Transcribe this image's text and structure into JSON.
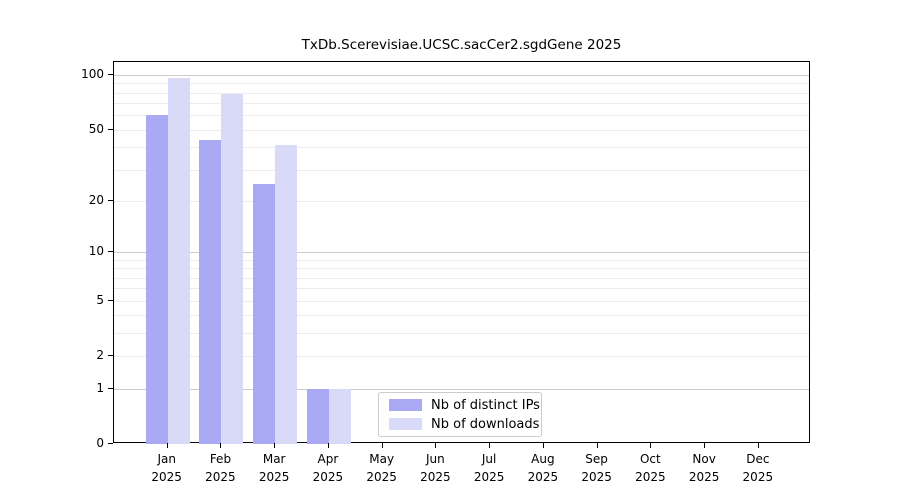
{
  "chart_data": {
    "type": "bar",
    "title": "TxDb.Scerevisiae.UCSC.sacCer2.sgdGene 2025",
    "x_months": [
      "Jan",
      "Feb",
      "Mar",
      "Apr",
      "May",
      "Jun",
      "Jul",
      "Aug",
      "Sep",
      "Oct",
      "Nov",
      "Dec"
    ],
    "x_year": "2025",
    "series": [
      {
        "name": "Nb of distinct IPs",
        "color": "#a9a9f4",
        "values": [
          60,
          44,
          25,
          1,
          0,
          0,
          0,
          0,
          0,
          0,
          0,
          0
        ]
      },
      {
        "name": "Nb of downloads",
        "color": "#d9d9f8",
        "values": [
          96,
          79,
          41,
          1,
          0,
          0,
          0,
          0,
          0,
          0,
          0,
          0
        ]
      }
    ],
    "yscale": "log1p",
    "ylim": [
      0,
      118
    ],
    "ytick_labels": [
      0,
      1,
      2,
      5,
      10,
      20,
      50,
      100
    ],
    "major_gridlines": [
      1,
      10,
      100
    ],
    "minor_gridlines": [
      2,
      3,
      4,
      5,
      6,
      7,
      8,
      9,
      20,
      30,
      40,
      50,
      60,
      70,
      80,
      90
    ],
    "grid": true,
    "legend_position": "bottom-center"
  }
}
